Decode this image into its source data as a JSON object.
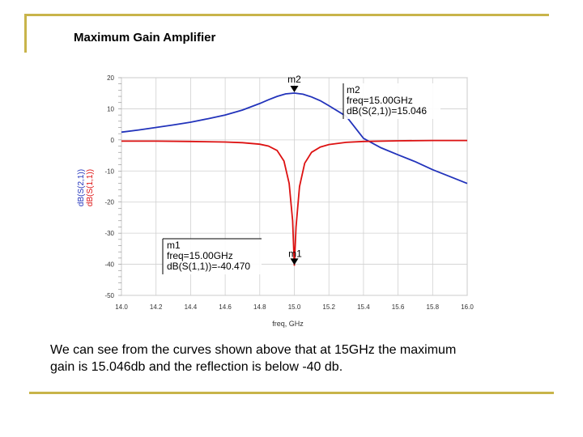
{
  "slide": {
    "title": "Maximum Gain Amplifier",
    "caption_line1": "We can see from the curves shown above that at 15GHz the maximum",
    "caption_line2": "gain is 15.046db and the reflection is below -40 db."
  },
  "colors": {
    "frame": "#c8b44a",
    "s21": "#2233bb",
    "s11": "#dd1111",
    "grid": "#d0d0d0"
  },
  "chart_data": {
    "type": "line",
    "title": "",
    "xlabel": "freq, GHz",
    "ylabel_series": [
      "dB(S(2,1))",
      "dB(S(1,1))"
    ],
    "xlim": [
      14.0,
      16.0
    ],
    "ylim": [
      -50,
      20
    ],
    "x_ticks": [
      14.0,
      14.2,
      14.4,
      14.6,
      14.8,
      15.0,
      15.2,
      15.4,
      15.6,
      15.8,
      16.0
    ],
    "x_tick_labels": [
      "14.0",
      "14.2",
      "14.4",
      "14.6",
      "14.8",
      "15.0",
      "15.2",
      "15.4",
      "15.6",
      "15.8",
      "16.0"
    ],
    "y_ticks": [
      20,
      10,
      0,
      -10,
      -20,
      -30,
      -40,
      -50
    ],
    "y_tick_labels": [
      "20",
      "10",
      "0",
      "-10",
      "-20",
      "-30",
      "-40",
      "-50"
    ],
    "grid": true,
    "series": [
      {
        "name": "dB(S(2,1))",
        "color": "#2233bb",
        "x": [
          14.0,
          14.1,
          14.2,
          14.3,
          14.4,
          14.5,
          14.6,
          14.7,
          14.8,
          14.85,
          14.9,
          14.95,
          15.0,
          15.05,
          15.1,
          15.15,
          15.2,
          15.3,
          15.4,
          15.5,
          15.6,
          15.7,
          15.8,
          15.9,
          16.0
        ],
        "y": [
          2.5,
          3.2,
          4.0,
          4.8,
          5.7,
          6.8,
          8.0,
          9.6,
          11.7,
          12.9,
          14.0,
          14.8,
          15.046,
          14.7,
          13.8,
          12.6,
          11.0,
          7.6,
          0.5,
          -2.5,
          -4.8,
          -7.0,
          -9.6,
          -11.8,
          -14.0
        ]
      },
      {
        "name": "dB(S(1,1))",
        "color": "#dd1111",
        "x": [
          14.0,
          14.2,
          14.4,
          14.6,
          14.7,
          14.8,
          14.85,
          14.9,
          14.94,
          14.97,
          14.99,
          15.0,
          15.01,
          15.03,
          15.06,
          15.1,
          15.15,
          15.2,
          15.3,
          15.4,
          15.6,
          15.8,
          16.0
        ],
        "y": [
          -0.4,
          -0.4,
          -0.5,
          -0.7,
          -0.9,
          -1.4,
          -2.0,
          -3.4,
          -6.8,
          -14.0,
          -26.0,
          -40.47,
          -28.0,
          -15.0,
          -7.5,
          -4.0,
          -2.3,
          -1.5,
          -0.8,
          -0.5,
          -0.3,
          -0.2,
          -0.2
        ]
      }
    ],
    "markers": [
      {
        "name": "m2",
        "label": "m2",
        "series": "dB(S(2,1))",
        "x": 15.0,
        "y": 15.046,
        "lines": [
          "m2",
          "freq=15.00GHz",
          "dB(S(2,1))=15.046"
        ]
      },
      {
        "name": "m1",
        "label": "m1",
        "series": "dB(S(1,1))",
        "x": 15.0,
        "y": -40.47,
        "lines": [
          "m1",
          "freq=15.00GHz",
          "dB(S(1,1))=-40.470"
        ]
      }
    ]
  }
}
